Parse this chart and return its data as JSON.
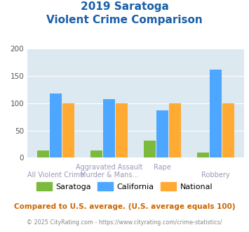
{
  "title_line1": "2019 Saratoga",
  "title_line2": "Violent Crime Comparison",
  "cat_labels_row1": [
    "",
    "Aggravated Assault",
    "Rape",
    ""
  ],
  "cat_labels_row2": [
    "All Violent Crime",
    "Murder & Mans...",
    "",
    "Robbery"
  ],
  "saratoga": [
    13,
    13,
    32,
    9
  ],
  "california": [
    118,
    107,
    87,
    162
  ],
  "national": [
    100,
    100,
    100,
    100
  ],
  "color_saratoga": "#7cba3e",
  "color_california": "#4da6ff",
  "color_national": "#ffaa33",
  "ylim": [
    0,
    200
  ],
  "yticks": [
    0,
    50,
    100,
    150,
    200
  ],
  "bg_color": "#dce9f0",
  "fig_bg": "#ffffff",
  "title_color": "#1a5fa8",
  "label_color": "#9999bb",
  "footer_text": "Compared to U.S. average. (U.S. average equals 100)",
  "credit_text": "© 2025 CityRating.com - https://www.cityrating.com/crime-statistics/",
  "footer_color": "#cc6600",
  "credit_color": "#888888"
}
